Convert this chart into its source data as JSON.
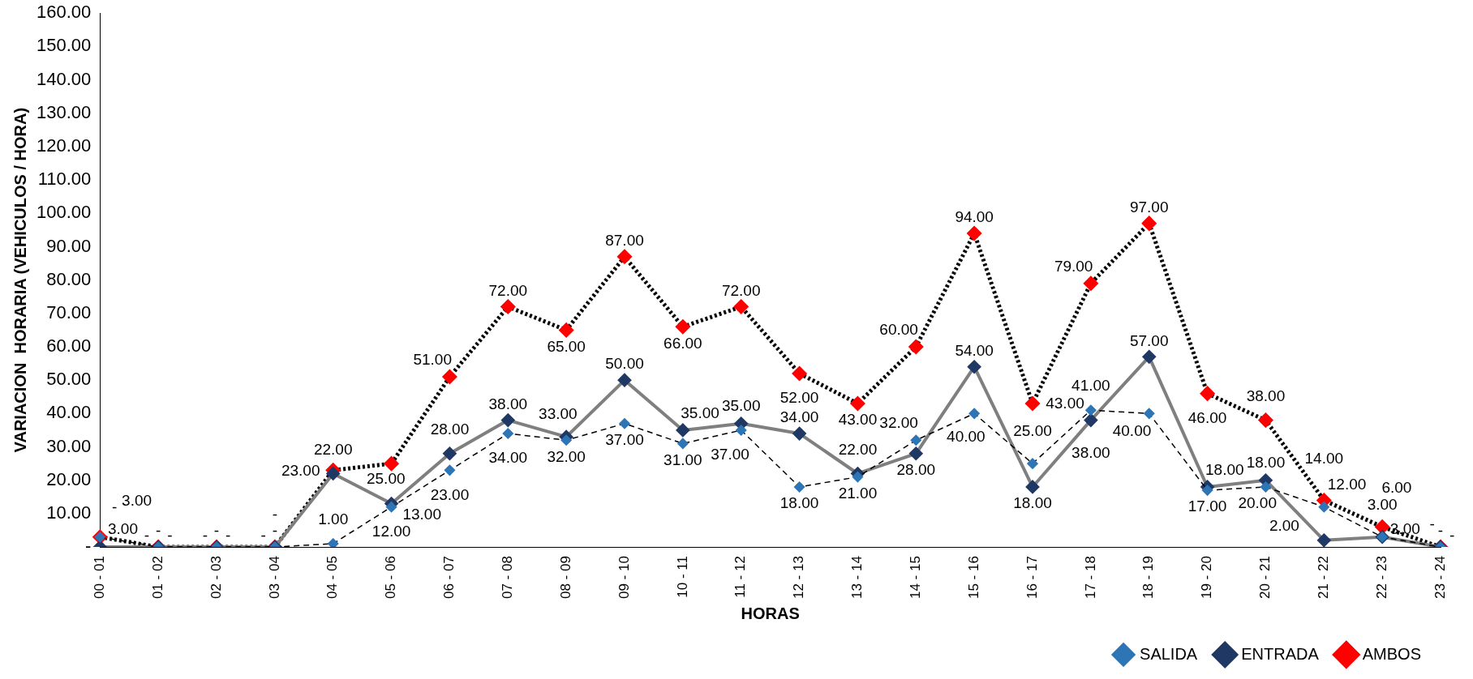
{
  "chart_data": {
    "type": "line",
    "xlabel": "HORAS",
    "ylabel": "VARIACION  HORARIA (VEHICULOS / HORA)",
    "categories": [
      "00 - 01",
      "01 - 02",
      "02 - 03",
      "03 - 04",
      "04 - 05",
      "05 - 06",
      "06 - 07",
      "07 - 08",
      "08 - 09",
      "09 - 10",
      "10 - 11",
      "11 - 12",
      "12 - 13",
      "13 - 14",
      "14 - 15",
      "15 - 16",
      "16 - 17",
      "17 - 18",
      "18 - 19",
      "19 - 20",
      "20 - 21",
      "21 - 22",
      "22 - 23",
      "23 - 24"
    ],
    "ylim": [
      0,
      160
    ],
    "yticks": [
      {
        "value": 0,
        "label": "-"
      },
      {
        "value": 10,
        "label": "10.00"
      },
      {
        "value": 20,
        "label": "20.00"
      },
      {
        "value": 30,
        "label": "30.00"
      },
      {
        "value": 40,
        "label": "40.00"
      },
      {
        "value": 50,
        "label": "50.00"
      },
      {
        "value": 60,
        "label": "60.00"
      },
      {
        "value": 70,
        "label": "70.00"
      },
      {
        "value": 80,
        "label": "80.00"
      },
      {
        "value": 90,
        "label": "90.00"
      },
      {
        "value": 100,
        "label": "100.00"
      },
      {
        "value": 110,
        "label": "110.00"
      },
      {
        "value": 120,
        "label": "120.00"
      },
      {
        "value": 130,
        "label": "130.00"
      },
      {
        "value": 140,
        "label": "140.00"
      },
      {
        "value": 150,
        "label": "150.00"
      },
      {
        "value": 160,
        "label": "160.00"
      }
    ],
    "grid": false,
    "legend": "bottom right",
    "marker": "diamond",
    "series": [
      {
        "name": "SALIDA",
        "color": "#2e75b6",
        "line_style": "dashed",
        "values": [
          3,
          0,
          0,
          0,
          1,
          12,
          23,
          34,
          32,
          37,
          31,
          35,
          18,
          21,
          32,
          40,
          25,
          41,
          40,
          17,
          18,
          12,
          3,
          0
        ],
        "value_labels": [
          "3.00",
          "-",
          "-",
          "-",
          "1.00",
          "12.00",
          "23.00",
          "34.00",
          "32.00",
          "37.00",
          "31.00",
          "35.00",
          "18.00",
          "21.00",
          "32.00",
          "40.00",
          "25.00",
          "41.00",
          "40.00",
          "17.00",
          "18.00",
          "12.00",
          "3.00",
          "-"
        ]
      },
      {
        "name": "ENTRADA",
        "color": "#1f3864",
        "line_style": "solid",
        "values": [
          0,
          0,
          0,
          0,
          22,
          13,
          28,
          38,
          33,
          50,
          35,
          37,
          34,
          22,
          28,
          54,
          18,
          38,
          57,
          18,
          20,
          2,
          3,
          0
        ],
        "value_labels": [
          "-",
          "-",
          "-",
          "-",
          "22.00",
          "13.00",
          "28.00",
          "38.00",
          "33.00",
          "50.00",
          "35.00",
          "37.00",
          "34.00",
          "22.00",
          "28.00",
          "54.00",
          "18.00",
          "38.00",
          "57.00",
          "18.00",
          "20.00",
          "2.00",
          "3.00",
          "-"
        ]
      },
      {
        "name": "AMBOS",
        "color": "#ff0000",
        "line_style": "dotted",
        "values": [
          3,
          0,
          0,
          0,
          23,
          25,
          51,
          72,
          65,
          87,
          66,
          72,
          52,
          43,
          60,
          94,
          43,
          79,
          97,
          46,
          38,
          14,
          6,
          0
        ],
        "value_labels": [
          "3.00",
          "-",
          "-",
          "-",
          "23.00",
          "25.00",
          "51.00",
          "72.00",
          "65.00",
          "87.00",
          "66.00",
          "72.00",
          "52.00",
          "43.00",
          "60.00",
          "94.00",
          "43.00",
          "79.00",
          "97.00",
          "46.00",
          "38.00",
          "14.00",
          "6.00",
          "-"
        ]
      }
    ]
  }
}
